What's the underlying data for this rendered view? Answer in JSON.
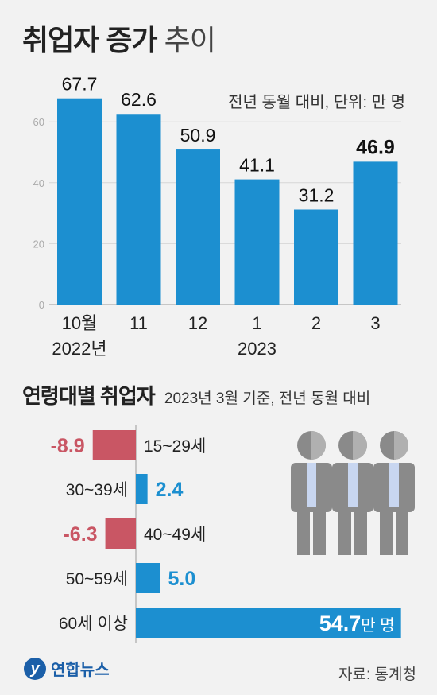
{
  "title_main": "취업자 증가",
  "title_sub": "추이",
  "unit_note": "전년 동월 대비, 단위: 만 명",
  "subtitle_main": "연령대별 취업자",
  "subtitle_note": "2023년 3월 기준, 전년 동월 대비",
  "source": "자료: 통계청",
  "logo_text": "연합뉴스",
  "logo_mark": "y",
  "colors": {
    "bar": "#1c8fd0",
    "negative": "#c95664",
    "accent_text": "#1c8fd0"
  },
  "chart_data": [
    {
      "type": "bar",
      "categories": [
        "10월",
        "11",
        "12",
        "1",
        "2",
        "3"
      ],
      "category_years": [
        "2022년",
        "",
        "",
        "2023",
        "",
        ""
      ],
      "values": [
        67.7,
        62.6,
        50.9,
        41.1,
        31.2,
        46.9
      ],
      "value_labels": [
        "67.7",
        "62.6",
        "50.9",
        "41.1",
        "31.2",
        "46.9"
      ],
      "y_ticks": [
        0,
        20,
        40,
        60
      ],
      "ylim": [
        0,
        70
      ],
      "highlight_last": true
    },
    {
      "type": "bar",
      "orientation": "horizontal",
      "categories": [
        "15~29세",
        "30~39세",
        "40~49세",
        "50~59세",
        "60세 이상"
      ],
      "values": [
        -8.9,
        2.4,
        -6.3,
        5.0,
        54.7
      ],
      "value_labels": [
        "-8.9",
        "2.4",
        "-6.3",
        "5.0",
        "54.7"
      ],
      "last_value_unit": "만 명"
    }
  ]
}
